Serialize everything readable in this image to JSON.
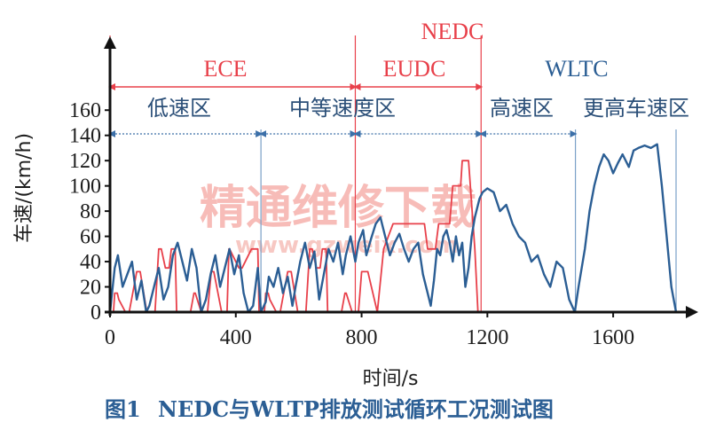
{
  "chart_data": {
    "type": "line",
    "title": "",
    "xlabel": "时间/s",
    "ylabel": "车速/(km/h)",
    "xlim": [
      0,
      1800
    ],
    "ylim": [
      0,
      170
    ],
    "xticks": [
      0,
      400,
      800,
      1200,
      1600
    ],
    "yticks": [
      0,
      20,
      40,
      60,
      80,
      100,
      120,
      140,
      160
    ],
    "grid": false,
    "legend": "none",
    "colors": {
      "NEDC": "#e8404a",
      "WLTC": "#2b5e94"
    },
    "annotations": {
      "nedc": "NEDC",
      "ece": "ECE",
      "eudc": "EUDC",
      "wltc": "WLTC",
      "zones": [
        "低速区",
        "中等速度区",
        "高速区",
        "更高车速区"
      ]
    },
    "boundaries": [
      0,
      480,
      780,
      1180,
      1480,
      1800
    ],
    "series": [
      {
        "name": "NEDC",
        "x": [
          0,
          11,
          15,
          23,
          28,
          49,
          61,
          85,
          96,
          117,
          143,
          155,
          163,
          176,
          188,
          195,
          207,
          212,
          240,
          256,
          267,
          271,
          290,
          310,
          322,
          330,
          355,
          372,
          378,
          380,
          410,
          420,
          450,
          470,
          474,
          476,
          480,
          491,
          495,
          503,
          508,
          529,
          541,
          565,
          576,
          597,
          623,
          635,
          643,
          656,
          668,
          675,
          687,
          692,
          720,
          736,
          747,
          751,
          770,
          790,
          800,
          820,
          850,
          870,
          900,
          950,
          980,
          1000,
          1010,
          1035,
          1045,
          1080,
          1090,
          1115,
          1120,
          1140,
          1160,
          1170,
          1178,
          1180
        ],
        "y": [
          0,
          0,
          15,
          15,
          10,
          0,
          0,
          32,
          32,
          0,
          0,
          50,
          50,
          35,
          35,
          50,
          50,
          0,
          0,
          0,
          15,
          15,
          0,
          0,
          32,
          32,
          0,
          0,
          50,
          50,
          35,
          35,
          50,
          50,
          0,
          0,
          0,
          0,
          15,
          15,
          10,
          0,
          0,
          32,
          32,
          0,
          0,
          50,
          50,
          35,
          35,
          50,
          50,
          0,
          0,
          0,
          15,
          15,
          0,
          0,
          32,
          32,
          0,
          50,
          70,
          70,
          70,
          70,
          50,
          50,
          70,
          70,
          100,
          100,
          120,
          120,
          50,
          0,
          0,
          0
        ]
      },
      {
        "name": "WLTC",
        "x": [
          0,
          15,
          25,
          40,
          55,
          70,
          85,
          100,
          115,
          125,
          140,
          155,
          170,
          185,
          200,
          215,
          230,
          245,
          260,
          275,
          290,
          305,
          320,
          335,
          350,
          365,
          380,
          395,
          410,
          425,
          440,
          455,
          470,
          480,
          495,
          505,
          520,
          535,
          550,
          565,
          580,
          590,
          605,
          620,
          635,
          650,
          665,
          680,
          695,
          710,
          725,
          740,
          750,
          765,
          780,
          790,
          805,
          815,
          830,
          845,
          860,
          875,
          890,
          905,
          920,
          935,
          950,
          965,
          980,
          995,
          1010,
          1020,
          1030,
          1040,
          1050,
          1060,
          1070,
          1080,
          1090,
          1100,
          1110,
          1120,
          1130,
          1140,
          1150,
          1160,
          1175,
          1185,
          1200,
          1220,
          1240,
          1260,
          1280,
          1300,
          1320,
          1340,
          1360,
          1380,
          1400,
          1420,
          1440,
          1460,
          1478,
          1490,
          1510,
          1525,
          1540,
          1555,
          1570,
          1585,
          1600,
          1615,
          1630,
          1650,
          1665,
          1680,
          1700,
          1720,
          1740,
          1755,
          1770,
          1785,
          1800
        ],
        "y": [
          0,
          35,
          45,
          20,
          30,
          40,
          10,
          25,
          0,
          5,
          20,
          35,
          10,
          20,
          45,
          55,
          40,
          25,
          50,
          35,
          0,
          10,
          30,
          45,
          20,
          35,
          50,
          30,
          45,
          15,
          0,
          5,
          35,
          0,
          8,
          28,
          20,
          35,
          15,
          28,
          5,
          20,
          40,
          55,
          35,
          48,
          10,
          30,
          50,
          40,
          55,
          30,
          45,
          60,
          40,
          55,
          65,
          45,
          58,
          70,
          75,
          60,
          45,
          55,
          62,
          50,
          40,
          50,
          55,
          30,
          15,
          5,
          25,
          50,
          45,
          60,
          65,
          55,
          40,
          60,
          45,
          55,
          20,
          35,
          60,
          75,
          90,
          95,
          98,
          95,
          80,
          85,
          70,
          60,
          55,
          40,
          45,
          30,
          20,
          40,
          35,
          10,
          0,
          20,
          50,
          80,
          100,
          115,
          125,
          120,
          110,
          118,
          125,
          115,
          128,
          130,
          132,
          130,
          133,
          100,
          60,
          20,
          0
        ]
      }
    ]
  },
  "watermark": {
    "text": "精通维修下载",
    "url": "www.gzweix.com"
  },
  "caption": {
    "fig_no": "图1",
    "text": "NEDC与WLTP排放测试循环工况测试图"
  }
}
